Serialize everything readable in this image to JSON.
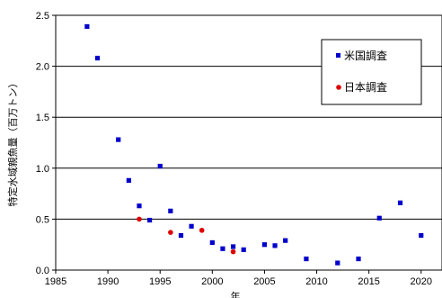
{
  "chart_data": {
    "type": "scatter",
    "title": "",
    "xlabel": "年",
    "ylabel": "特定水域親魚量（百万トン）",
    "xlim": [
      1985,
      2022
    ],
    "ylim": [
      0,
      2.5
    ],
    "x_ticks": [
      1985,
      1990,
      1995,
      2000,
      2005,
      2010,
      2015,
      2020
    ],
    "y_ticks": [
      0.0,
      0.5,
      1.0,
      1.5,
      2.0,
      2.5
    ],
    "y_tick_labels": [
      "0.0",
      "0.5",
      "1.0",
      "1.5",
      "2.0",
      "2.5"
    ],
    "grid": "horizontal",
    "legend_position": "top-right",
    "series": [
      {
        "name": "米国調査",
        "marker": "square",
        "color": "#0000cc",
        "points": [
          [
            1988,
            2.39
          ],
          [
            1989,
            2.08
          ],
          [
            1991,
            1.28
          ],
          [
            1992,
            0.88
          ],
          [
            1993,
            0.63
          ],
          [
            1994,
            0.49
          ],
          [
            1995,
            1.02
          ],
          [
            1996,
            0.58
          ],
          [
            1997,
            0.34
          ],
          [
            1998,
            0.43
          ],
          [
            2000,
            0.27
          ],
          [
            2001,
            0.21
          ],
          [
            2002,
            0.23
          ],
          [
            2003,
            0.2
          ],
          [
            2005,
            0.25
          ],
          [
            2006,
            0.24
          ],
          [
            2007,
            0.29
          ],
          [
            2009,
            0.11
          ],
          [
            2012,
            0.07
          ],
          [
            2014,
            0.11
          ],
          [
            2016,
            0.51
          ],
          [
            2018,
            0.66
          ],
          [
            2020,
            0.34
          ]
        ]
      },
      {
        "name": "日本調査",
        "marker": "circle",
        "color": "#dd0000",
        "points": [
          [
            1993,
            0.5
          ],
          [
            1996,
            0.37
          ],
          [
            1999,
            0.39
          ],
          [
            2002,
            0.18
          ]
        ]
      }
    ]
  }
}
